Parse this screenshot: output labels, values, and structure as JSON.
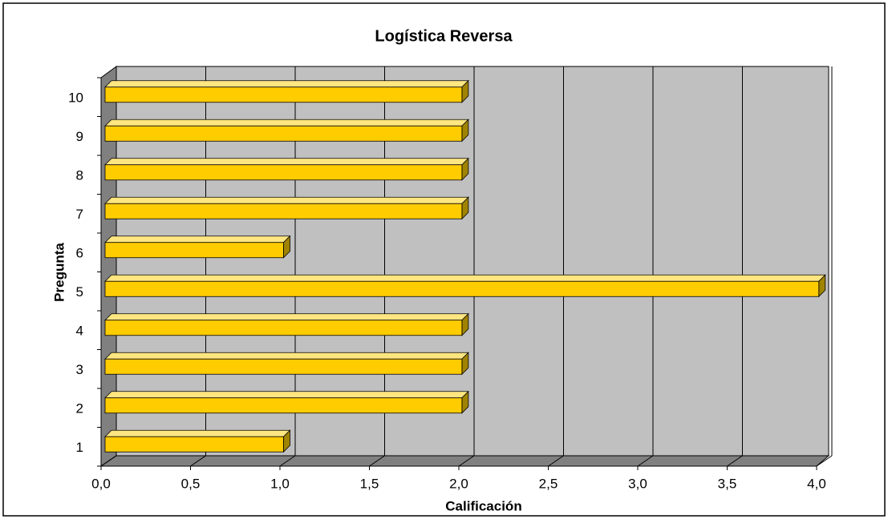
{
  "chart_data": {
    "type": "bar3d_horizontal",
    "title": "Logística Reversa",
    "x_label": "Calificación",
    "y_label": "Pregunta",
    "categories": [
      "1",
      "2",
      "3",
      "4",
      "5",
      "6",
      "7",
      "8",
      "9",
      "10"
    ],
    "values": [
      1,
      2,
      2,
      2,
      4,
      1,
      2,
      2,
      2,
      2
    ],
    "color": "#ffcc00",
    "xlim": [
      0,
      4
    ],
    "xticks": [
      {
        "value": 0,
        "label": "0,0"
      },
      {
        "value": 0.5,
        "label": "0,5"
      },
      {
        "value": 1,
        "label": "1,0"
      },
      {
        "value": 1.5,
        "label": "1,5"
      },
      {
        "value": 2,
        "label": "2,0"
      },
      {
        "value": 2.5,
        "label": "2,5"
      },
      {
        "value": 3,
        "label": "3,0"
      },
      {
        "value": 3.5,
        "label": "3,5"
      },
      {
        "value": 4,
        "label": "4,0"
      }
    ],
    "grid": true
  }
}
